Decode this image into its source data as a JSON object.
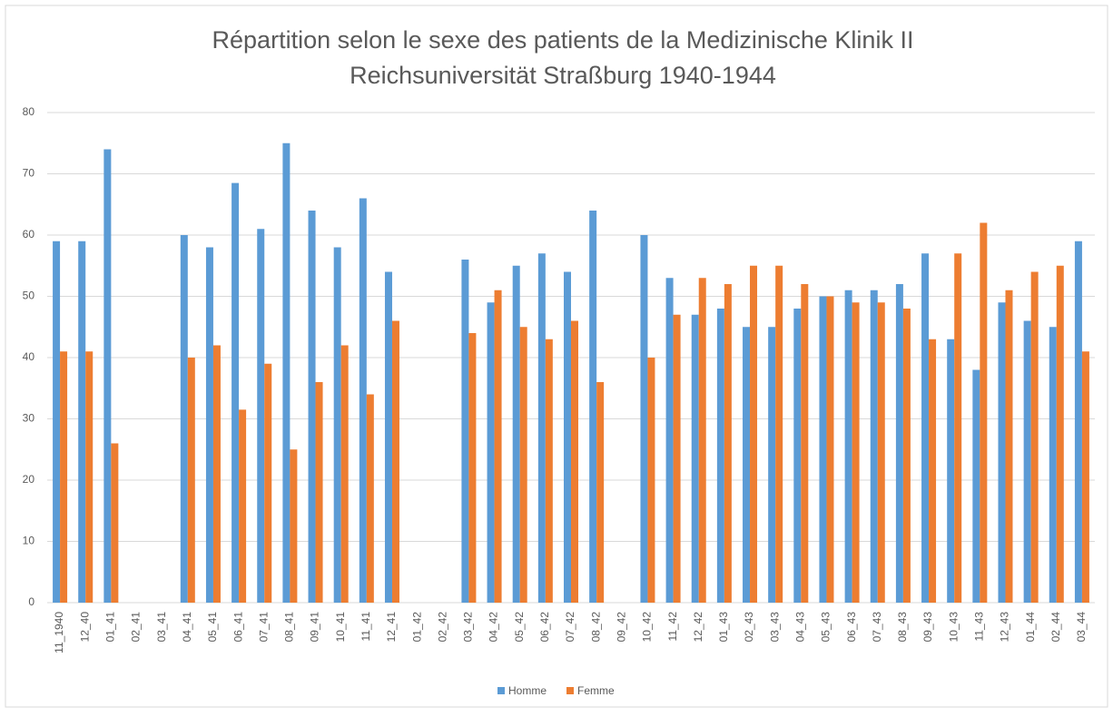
{
  "chart_data": {
    "type": "bar",
    "title": [
      "Répartition selon le sexe des patients de la Medizinische Klinik II",
      "Reichsuniversität Straßburg 1940-1944"
    ],
    "categories": [
      "11_1940",
      "12_40",
      "01_41",
      "02_41",
      "03_41",
      "04_41",
      "05_41",
      "06_41",
      "07_41",
      "08_41",
      "09_41",
      "10_41",
      "11_41",
      "12_41",
      "01_42",
      "02_42",
      "03_42",
      "04_42",
      "05_42",
      "06_42",
      "07_42",
      "08_42",
      "09_42",
      "10_42",
      "11_42",
      "12_42",
      "01_43",
      "02_43",
      "03_43",
      "04_43",
      "05_43",
      "06_43",
      "07_43",
      "08_43",
      "09_43",
      "10_43",
      "11_43",
      "12_43",
      "01_44",
      "02_44",
      "03_44"
    ],
    "series": [
      {
        "name": "Homme",
        "color": "#5b9bd5",
        "values": [
          59,
          59,
          74,
          null,
          null,
          60,
          58,
          68.5,
          61,
          75,
          64,
          58,
          66,
          54,
          null,
          null,
          56,
          49,
          55,
          57,
          54,
          64,
          null,
          60,
          53,
          47,
          48,
          45,
          45,
          48,
          50,
          51,
          51,
          52,
          57,
          43,
          38,
          49,
          46,
          45,
          59
        ]
      },
      {
        "name": "Femme",
        "color": "#ed7d31",
        "values": [
          41,
          41,
          26,
          null,
          null,
          40,
          42,
          31.5,
          39,
          25,
          36,
          42,
          34,
          46,
          null,
          null,
          44,
          51,
          45,
          43,
          46,
          36,
          null,
          40,
          47,
          53,
          52,
          55,
          55,
          52,
          50,
          49,
          49,
          48,
          43,
          57,
          62,
          51,
          54,
          55,
          41
        ]
      }
    ],
    "ylim": [
      0,
      80
    ],
    "yticks": [
      0,
      10,
      20,
      30,
      40,
      50,
      60,
      70,
      80
    ],
    "grid": true,
    "legend": "bottom"
  }
}
